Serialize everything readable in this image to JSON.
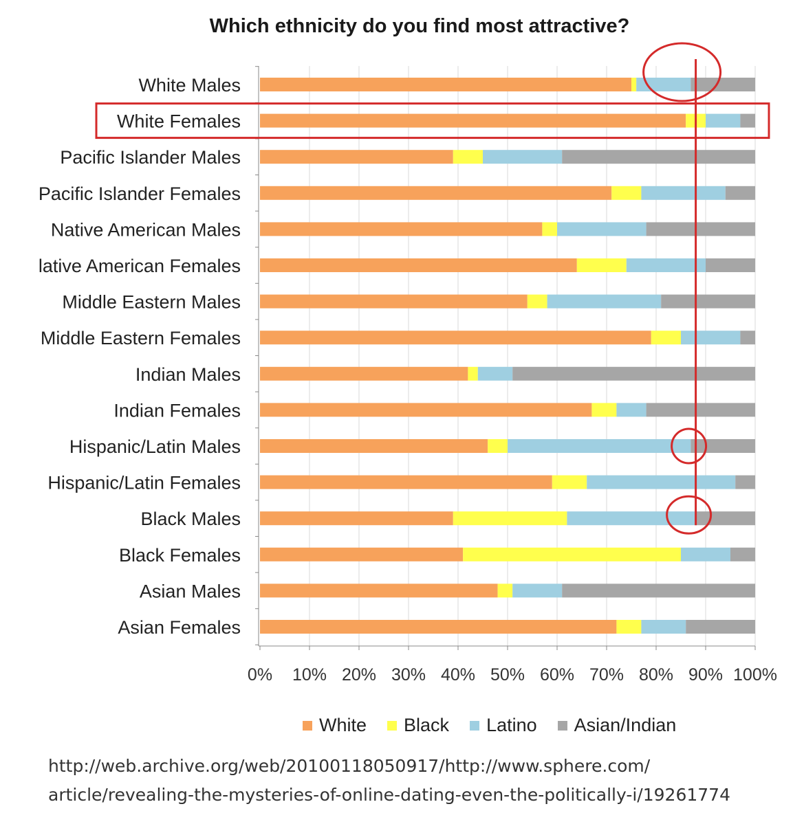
{
  "chart_data": {
    "type": "bar",
    "orientation": "horizontal",
    "stacked": true,
    "title": "Which ethnicity do you find most attractive?",
    "categories": [
      "White Males",
      "White Females",
      "Pacific Islander Males",
      "Pacific Islander Females",
      "Native American Males",
      "lative American Females",
      "Middle Eastern Males",
      "Middle Eastern Females",
      "Indian Males",
      "Indian Females",
      "Hispanic/Latin Males",
      "Hispanic/Latin Females",
      "Black Males",
      "Black Females",
      "Asian Males",
      "Asian Females"
    ],
    "series": [
      {
        "name": "White",
        "color": "#f7a25b",
        "values": [
          75,
          86,
          39,
          71,
          57,
          64,
          54,
          79,
          42,
          67,
          46,
          59,
          39,
          41,
          48,
          72
        ]
      },
      {
        "name": "Black",
        "color": "#ffff4d",
        "values": [
          1,
          4,
          6,
          6,
          3,
          10,
          4,
          6,
          2,
          5,
          4,
          7,
          23,
          44,
          3,
          5
        ]
      },
      {
        "name": "Latino",
        "color": "#9fcfe1",
        "values": [
          11,
          7,
          16,
          17,
          18,
          16,
          23,
          12,
          7,
          6,
          37,
          30,
          26,
          10,
          10,
          9
        ]
      },
      {
        "name": "Asian/Indian",
        "color": "#a6a6a6",
        "values": [
          13,
          3,
          39,
          6,
          22,
          10,
          19,
          3,
          49,
          22,
          13,
          4,
          12,
          5,
          39,
          14
        ]
      }
    ],
    "xticks": [
      "0%",
      "10%",
      "20%",
      "30%",
      "40%",
      "50%",
      "60%",
      "70%",
      "80%",
      "90%",
      "100%"
    ],
    "xlim": [
      0,
      100
    ],
    "grid": true,
    "legend_position": "bottom",
    "annotations": {
      "highlighted_category": "White Females",
      "vertical_line_at": 88,
      "circled": [
        "White Males",
        "Hispanic/Latin Males",
        "Black Males"
      ],
      "annotation_color": "#d42a2a"
    }
  },
  "source": {
    "line1": "http://web.archive.org/web/20100118050917/http://www.sphere.com/",
    "line2": "article/revealing-the-mysteries-of-online-dating-even-the-politically-i/19261774"
  }
}
